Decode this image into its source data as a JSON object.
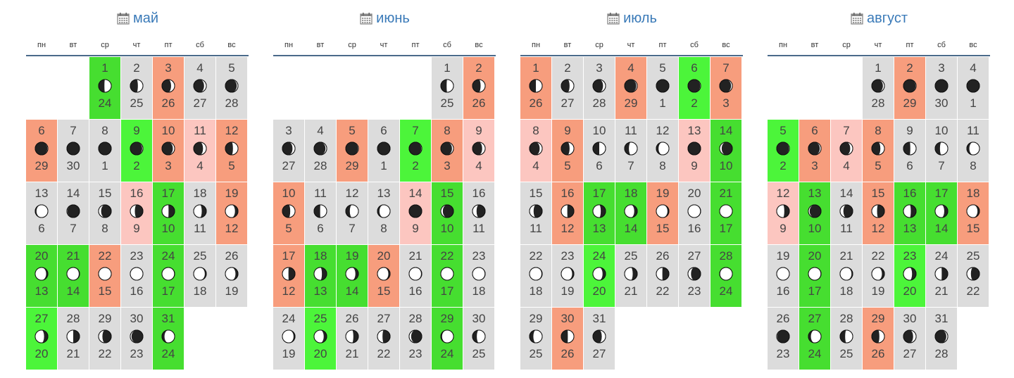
{
  "weekdays": [
    "пн",
    "вт",
    "ср",
    "чт",
    "пт",
    "сб",
    "вс"
  ],
  "colors": {
    "gray": "#dcdcdc",
    "green": "#46de30",
    "bright": "#4cf53a",
    "salmon": "#f79d7d",
    "pink": "#fcc6c0",
    "title": "#3a7ab8"
  },
  "icons": {
    "calendar": "calendar-icon",
    "moon": "moon-phase-icon"
  },
  "months": [
    {
      "name": "май",
      "offset": 2,
      "days": [
        {
          "d": "1",
          "l": "24",
          "c": "green",
          "ph": 0.27
        },
        {
          "d": "2",
          "l": "25",
          "c": "gray",
          "ph": 0.2
        },
        {
          "d": "3",
          "l": "26",
          "c": "salmon",
          "ph": 0.14
        },
        {
          "d": "4",
          "l": "27",
          "c": "gray",
          "ph": 0.09
        },
        {
          "d": "5",
          "l": "28",
          "c": "gray",
          "ph": 0.05
        },
        {
          "d": "6",
          "l": "29",
          "c": "salmon",
          "ph": 0.02
        },
        {
          "d": "7",
          "l": "30",
          "c": "gray",
          "ph": 0.01
        },
        {
          "d": "8",
          "l": "1",
          "c": "gray",
          "ph": 0.0
        },
        {
          "d": "9",
          "l": "2",
          "c": "bright",
          "ph": 0.03
        },
        {
          "d": "10",
          "l": "3",
          "c": "salmon",
          "ph": 0.07
        },
        {
          "d": "11",
          "l": "4",
          "c": "pink",
          "ph": 0.13
        },
        {
          "d": "12",
          "l": "5",
          "c": "salmon",
          "ph": 0.2
        },
        {
          "d": "13",
          "l": "6",
          "c": "gray",
          "ph": 0.45
        },
        {
          "d": "14",
          "l": "7",
          "c": "gray",
          "ph": 0.52
        },
        {
          "d": "15",
          "l": "8",
          "c": "gray",
          "ph": 0.6
        },
        {
          "d": "16",
          "l": "9",
          "c": "pink",
          "ph": 0.68
        },
        {
          "d": "17",
          "l": "10",
          "c": "green",
          "ph": 0.76
        },
        {
          "d": "18",
          "l": "11",
          "c": "gray",
          "ph": 0.82
        },
        {
          "d": "19",
          "l": "12",
          "c": "salmon",
          "ph": 0.88
        },
        {
          "d": "20",
          "l": "13",
          "c": "green",
          "ph": 0.93
        },
        {
          "d": "21",
          "l": "14",
          "c": "green",
          "ph": 0.97
        },
        {
          "d": "22",
          "l": "15",
          "c": "salmon",
          "ph": 0.99
        },
        {
          "d": "23",
          "l": "16",
          "c": "gray",
          "ph": 1.0
        },
        {
          "d": "24",
          "l": "17",
          "c": "green",
          "ph": 0.98
        },
        {
          "d": "25",
          "l": "18",
          "c": "gray",
          "ph": 0.94
        },
        {
          "d": "26",
          "l": "19",
          "c": "gray",
          "ph": 0.9
        },
        {
          "d": "27",
          "l": "20",
          "c": "bright",
          "ph": 0.85
        },
        {
          "d": "28",
          "l": "21",
          "c": "gray",
          "ph": 0.75
        },
        {
          "d": "29",
          "l": "22",
          "c": "gray",
          "ph": 0.65
        },
        {
          "d": "30",
          "l": "23",
          "c": "gray",
          "ph": 0.55
        },
        {
          "d": "31",
          "l": "24",
          "c": "green",
          "ph": 0.4
        }
      ]
    },
    {
      "name": "июнь",
      "offset": 5,
      "days": [
        {
          "d": "1",
          "l": "25",
          "c": "gray",
          "ph": 0.27
        },
        {
          "d": "2",
          "l": "26",
          "c": "salmon",
          "ph": 0.18
        },
        {
          "d": "3",
          "l": "27",
          "c": "gray",
          "ph": 0.1
        },
        {
          "d": "4",
          "l": "28",
          "c": "gray",
          "ph": 0.05
        },
        {
          "d": "5",
          "l": "29",
          "c": "salmon",
          "ph": 0.02
        },
        {
          "d": "6",
          "l": "1",
          "c": "gray",
          "ph": 0.0
        },
        {
          "d": "7",
          "l": "2",
          "c": "bright",
          "ph": 0.02
        },
        {
          "d": "8",
          "l": "3",
          "c": "salmon",
          "ph": 0.06
        },
        {
          "d": "9",
          "l": "4",
          "c": "pink",
          "ph": 0.12
        },
        {
          "d": "10",
          "l": "5",
          "c": "salmon",
          "ph": 0.19
        },
        {
          "d": "11",
          "l": "6",
          "c": "gray",
          "ph": 0.26
        },
        {
          "d": "12",
          "l": "7",
          "c": "gray",
          "ph": 0.34
        },
        {
          "d": "13",
          "l": "8",
          "c": "gray",
          "ph": 0.42
        },
        {
          "d": "14",
          "l": "9",
          "c": "pink",
          "ph": 0.5
        },
        {
          "d": "15",
          "l": "10",
          "c": "green",
          "ph": 0.58
        },
        {
          "d": "16",
          "l": "11",
          "c": "gray",
          "ph": 0.66
        },
        {
          "d": "17",
          "l": "12",
          "c": "salmon",
          "ph": 0.74
        },
        {
          "d": "18",
          "l": "13",
          "c": "green",
          "ph": 0.81
        },
        {
          "d": "19",
          "l": "14",
          "c": "green",
          "ph": 0.88
        },
        {
          "d": "20",
          "l": "15",
          "c": "salmon",
          "ph": 0.93
        },
        {
          "d": "21",
          "l": "16",
          "c": "gray",
          "ph": 0.97
        },
        {
          "d": "22",
          "l": "17",
          "c": "green",
          "ph": 1.0
        },
        {
          "d": "23",
          "l": "18",
          "c": "gray",
          "ph": 0.98
        },
        {
          "d": "24",
          "l": "19",
          "c": "gray",
          "ph": 0.94
        },
        {
          "d": "25",
          "l": "20",
          "c": "bright",
          "ph": 0.88
        },
        {
          "d": "26",
          "l": "21",
          "c": "gray",
          "ph": 0.8
        },
        {
          "d": "27",
          "l": "22",
          "c": "gray",
          "ph": 0.7
        },
        {
          "d": "28",
          "l": "23",
          "c": "gray",
          "ph": 0.58
        },
        {
          "d": "29",
          "l": "24",
          "c": "green",
          "ph": 0.45
        },
        {
          "d": "30",
          "l": "25",
          "c": "gray",
          "ph": 0.33
        }
      ]
    },
    {
      "name": "июль",
      "offset": 0,
      "days": [
        {
          "d": "1",
          "l": "26",
          "c": "salmon",
          "ph": 0.25
        },
        {
          "d": "2",
          "l": "27",
          "c": "gray",
          "ph": 0.17
        },
        {
          "d": "3",
          "l": "28",
          "c": "gray",
          "ph": 0.1
        },
        {
          "d": "4",
          "l": "29",
          "c": "salmon",
          "ph": 0.04
        },
        {
          "d": "5",
          "l": "1",
          "c": "gray",
          "ph": 0.0
        },
        {
          "d": "6",
          "l": "2",
          "c": "bright",
          "ph": 0.02
        },
        {
          "d": "7",
          "l": "3",
          "c": "salmon",
          "ph": 0.05
        },
        {
          "d": "8",
          "l": "4",
          "c": "pink",
          "ph": 0.1
        },
        {
          "d": "9",
          "l": "5",
          "c": "salmon",
          "ph": 0.17
        },
        {
          "d": "10",
          "l": "6",
          "c": "gray",
          "ph": 0.25
        },
        {
          "d": "11",
          "l": "7",
          "c": "gray",
          "ph": 0.33
        },
        {
          "d": "12",
          "l": "8",
          "c": "gray",
          "ph": 0.41
        },
        {
          "d": "13",
          "l": "9",
          "c": "pink",
          "ph": 0.5
        },
        {
          "d": "14",
          "l": "10",
          "c": "green",
          "ph": 0.58
        },
        {
          "d": "15",
          "l": "11",
          "c": "gray",
          "ph": 0.66
        },
        {
          "d": "16",
          "l": "12",
          "c": "salmon",
          "ph": 0.74
        },
        {
          "d": "17",
          "l": "13",
          "c": "green",
          "ph": 0.81
        },
        {
          "d": "18",
          "l": "14",
          "c": "green",
          "ph": 0.88
        },
        {
          "d": "19",
          "l": "15",
          "c": "salmon",
          "ph": 0.94
        },
        {
          "d": "20",
          "l": "16",
          "c": "gray",
          "ph": 0.98
        },
        {
          "d": "21",
          "l": "17",
          "c": "green",
          "ph": 1.0
        },
        {
          "d": "22",
          "l": "18",
          "c": "gray",
          "ph": 0.97
        },
        {
          "d": "23",
          "l": "19",
          "c": "gray",
          "ph": 0.93
        },
        {
          "d": "24",
          "l": "20",
          "c": "bright",
          "ph": 0.88
        },
        {
          "d": "25",
          "l": "21",
          "c": "gray",
          "ph": 0.82
        },
        {
          "d": "26",
          "l": "22",
          "c": "gray",
          "ph": 0.74
        },
        {
          "d": "27",
          "l": "23",
          "c": "gray",
          "ph": 0.62
        },
        {
          "d": "28",
          "l": "24",
          "c": "green",
          "ph": 0.48
        },
        {
          "d": "29",
          "l": "25",
          "c": "gray",
          "ph": 0.35
        },
        {
          "d": "30",
          "l": "26",
          "c": "salmon",
          "ph": 0.24
        },
        {
          "d": "31",
          "l": "27",
          "c": "gray",
          "ph": 0.15
        }
      ]
    },
    {
      "name": "август",
      "offset": 3,
      "days": [
        {
          "d": "1",
          "l": "28",
          "c": "gray",
          "ph": 0.06
        },
        {
          "d": "2",
          "l": "29",
          "c": "salmon",
          "ph": 0.02
        },
        {
          "d": "3",
          "l": "30",
          "c": "gray",
          "ph": 0.01
        },
        {
          "d": "4",
          "l": "1",
          "c": "gray",
          "ph": 0.0
        },
        {
          "d": "5",
          "l": "2",
          "c": "bright",
          "ph": 0.02
        },
        {
          "d": "6",
          "l": "3",
          "c": "salmon",
          "ph": 0.05
        },
        {
          "d": "7",
          "l": "4",
          "c": "pink",
          "ph": 0.1
        },
        {
          "d": "8",
          "l": "5",
          "c": "salmon",
          "ph": 0.16
        },
        {
          "d": "9",
          "l": "6",
          "c": "gray",
          "ph": 0.23
        },
        {
          "d": "10",
          "l": "7",
          "c": "gray",
          "ph": 0.31
        },
        {
          "d": "11",
          "l": "8",
          "c": "gray",
          "ph": 0.4
        },
        {
          "d": "12",
          "l": "9",
          "c": "pink",
          "ph": 0.8
        },
        {
          "d": "13",
          "l": "10",
          "c": "green",
          "ph": 0.55
        },
        {
          "d": "14",
          "l": "11",
          "c": "gray",
          "ph": 0.63
        },
        {
          "d": "15",
          "l": "12",
          "c": "salmon",
          "ph": 0.71
        },
        {
          "d": "16",
          "l": "13",
          "c": "green",
          "ph": 0.79
        },
        {
          "d": "17",
          "l": "14",
          "c": "green",
          "ph": 0.86
        },
        {
          "d": "18",
          "l": "15",
          "c": "salmon",
          "ph": 0.92
        },
        {
          "d": "19",
          "l": "16",
          "c": "gray",
          "ph": 1.0
        },
        {
          "d": "20",
          "l": "17",
          "c": "green",
          "ph": 0.98
        },
        {
          "d": "21",
          "l": "18",
          "c": "gray",
          "ph": 0.95
        },
        {
          "d": "22",
          "l": "19",
          "c": "gray",
          "ph": 0.9
        },
        {
          "d": "23",
          "l": "20",
          "c": "bright",
          "ph": 0.84
        },
        {
          "d": "24",
          "l": "21",
          "c": "gray",
          "ph": 0.76
        },
        {
          "d": "25",
          "l": "22",
          "c": "gray",
          "ph": 0.66
        },
        {
          "d": "26",
          "l": "23",
          "c": "gray",
          "ph": 0.52
        },
        {
          "d": "27",
          "l": "24",
          "c": "green",
          "ph": 0.4
        },
        {
          "d": "28",
          "l": "25",
          "c": "gray",
          "ph": 0.3
        },
        {
          "d": "29",
          "l": "26",
          "c": "salmon",
          "ph": 0.2
        },
        {
          "d": "30",
          "l": "27",
          "c": "gray",
          "ph": 0.12
        },
        {
          "d": "31",
          "l": "28",
          "c": "gray",
          "ph": 0.06
        }
      ]
    }
  ]
}
